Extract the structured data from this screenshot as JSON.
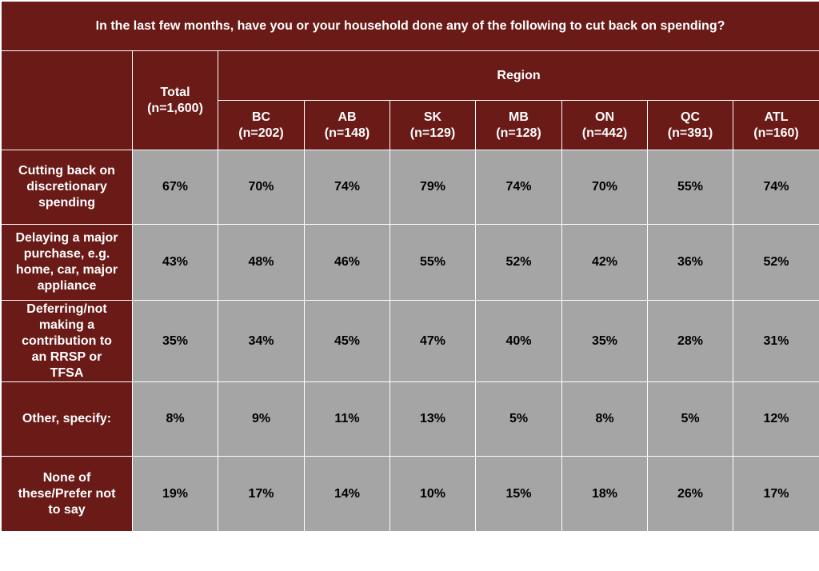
{
  "chart_data": {
    "type": "table",
    "title": "In the last few months, have you or your household done any of the following to cut back on spending?",
    "group_header": "Region",
    "total_header": "Total\n(n=1,600)",
    "columns": [
      {
        "name": "BC",
        "n": "(n=202)"
      },
      {
        "name": "AB",
        "n": "(n=148)"
      },
      {
        "name": "SK",
        "n": "(n=129)"
      },
      {
        "name": "MB",
        "n": "(n=128)"
      },
      {
        "name": "ON",
        "n": "(n=442)"
      },
      {
        "name": "QC",
        "n": "(n=391)"
      },
      {
        "name": "ATL",
        "n": "(n=160)"
      }
    ],
    "rows": [
      {
        "label": "Cutting back on\ndiscretionary\nspending",
        "total": "67%",
        "values": [
          "70%",
          "74%",
          "79%",
          "74%",
          "70%",
          "55%",
          "74%"
        ]
      },
      {
        "label": "Delaying a major\npurchase, e.g.\nhome, car, major\nappliance",
        "total": "43%",
        "values": [
          "48%",
          "46%",
          "55%",
          "52%",
          "42%",
          "36%",
          "52%"
        ]
      },
      {
        "label": "Deferring/not\nmaking a\ncontribution to\nan RRSP or\nTFSA",
        "total": "35%",
        "values": [
          "34%",
          "45%",
          "47%",
          "40%",
          "35%",
          "28%",
          "31%"
        ]
      },
      {
        "label": "Other, specify:",
        "total": "8%",
        "values": [
          "9%",
          "11%",
          "13%",
          "5%",
          "8%",
          "5%",
          "12%"
        ]
      },
      {
        "label": "None of\nthese/Prefer not\nto say",
        "total": "19%",
        "values": [
          "17%",
          "14%",
          "10%",
          "15%",
          "18%",
          "26%",
          "17%"
        ]
      }
    ]
  },
  "colors": {
    "header_bg": "#6a1a17",
    "cell_bg": "#a5a5a5",
    "border": "#ffffff"
  }
}
